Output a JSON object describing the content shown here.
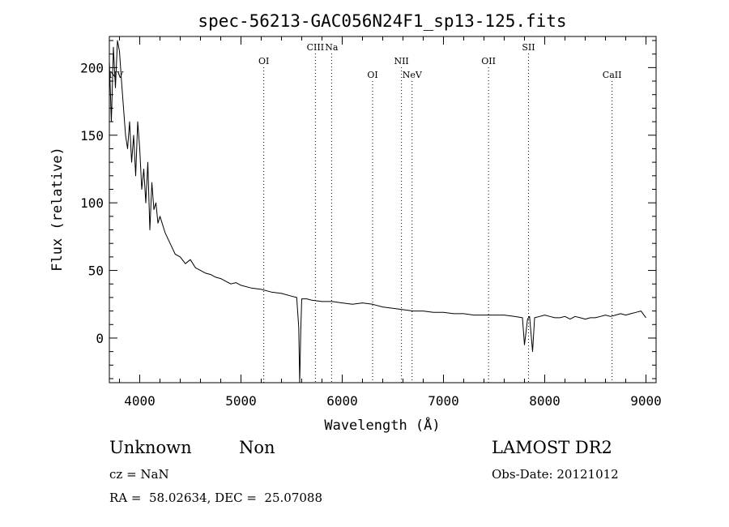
{
  "chart_data": {
    "type": "line",
    "title": "spec-56213-GAC056N24F1_sp13-125.fits",
    "xlabel": "Wavelength (Å)",
    "ylabel": "Flux (relative)",
    "xlim": [
      3700,
      9100
    ],
    "ylim": [
      -33,
      223
    ],
    "xticks": [
      4000,
      5000,
      6000,
      7000,
      8000,
      9000
    ],
    "yticks": [
      0,
      50,
      100,
      150,
      200
    ],
    "grid": false,
    "line_color": "#000000",
    "series": [
      {
        "x": [
          3700,
          3720,
          3740,
          3760,
          3780,
          3800,
          3820,
          3840,
          3860,
          3880,
          3900,
          3920,
          3940,
          3960,
          3980,
          4000,
          4020,
          4040,
          4060,
          4080,
          4100,
          4120,
          4140,
          4160,
          4180,
          4200,
          4250,
          4300,
          4350,
          4400,
          4450,
          4500,
          4550,
          4600,
          4650,
          4700,
          4750,
          4800,
          4850,
          4900,
          4950,
          5000,
          5100,
          5200,
          5300,
          5400,
          5500,
          5550,
          5570,
          5580,
          5590,
          5600,
          5650,
          5700,
          5800,
          5900,
          6000,
          6100,
          6200,
          6300,
          6400,
          6500,
          6600,
          6700,
          6800,
          6900,
          7000,
          7100,
          7200,
          7300,
          7400,
          7500,
          7600,
          7700,
          7780,
          7800,
          7830,
          7850,
          7880,
          7900,
          7950,
          8000,
          8050,
          8100,
          8150,
          8200,
          8250,
          8300,
          8350,
          8400,
          8450,
          8500,
          8550,
          8600,
          8650,
          8700,
          8750,
          8800,
          8850,
          8900,
          8950,
          9000
        ],
        "y": [
          205,
          160,
          215,
          185,
          220,
          212,
          190,
          170,
          150,
          140,
          160,
          130,
          150,
          120,
          160,
          140,
          110,
          125,
          100,
          130,
          80,
          115,
          95,
          100,
          85,
          90,
          78,
          70,
          62,
          60,
          55,
          58,
          52,
          50,
          48,
          47,
          45,
          44,
          42,
          40,
          41,
          39,
          37,
          36,
          34,
          33,
          31,
          30,
          8,
          -33,
          5,
          29,
          29,
          28,
          27,
          27,
          26,
          25,
          26,
          25,
          23,
          22,
          21,
          20,
          20,
          19,
          19,
          18,
          18,
          17,
          17,
          17,
          17,
          16,
          15,
          -5,
          14,
          16,
          -10,
          15,
          16,
          17,
          16,
          15,
          15,
          16,
          14,
          16,
          15,
          14,
          15,
          15,
          16,
          17,
          16,
          17,
          18,
          17,
          18,
          19,
          20,
          15
        ]
      }
    ],
    "annotations": [
      {
        "label": "NV",
        "x": 3720,
        "row": "lower",
        "dotted_line": false
      },
      {
        "label": "OI",
        "x": 5225,
        "row": "middle",
        "dotted_line": true
      },
      {
        "label": "CIII",
        "x": 5735,
        "row": "top",
        "dotted_line": true
      },
      {
        "label": "Na",
        "x": 5895,
        "row": "top",
        "dotted_line": true
      },
      {
        "label": "OI",
        "x": 6300,
        "row": "lower",
        "dotted_line": true
      },
      {
        "label": "NII",
        "x": 6585,
        "row": "middle",
        "dotted_line": true
      },
      {
        "label": "NeV",
        "x": 6690,
        "row": "lower",
        "dotted_line": true
      },
      {
        "label": "OII",
        "x": 7445,
        "row": "middle",
        "dotted_line": true
      },
      {
        "label": "SII",
        "x": 7840,
        "row": "top",
        "dotted_line": true
      },
      {
        "label": "CaII",
        "x": 8665,
        "row": "lower",
        "dotted_line": true
      }
    ]
  },
  "info": {
    "class": "Unknown",
    "subclass": "Non",
    "cz": "cz = NaN",
    "radec": "RA =  58.02634, DEC =  25.07088",
    "survey": "LAMOST DR2",
    "obsdate": "Obs-Date: 20121012"
  }
}
